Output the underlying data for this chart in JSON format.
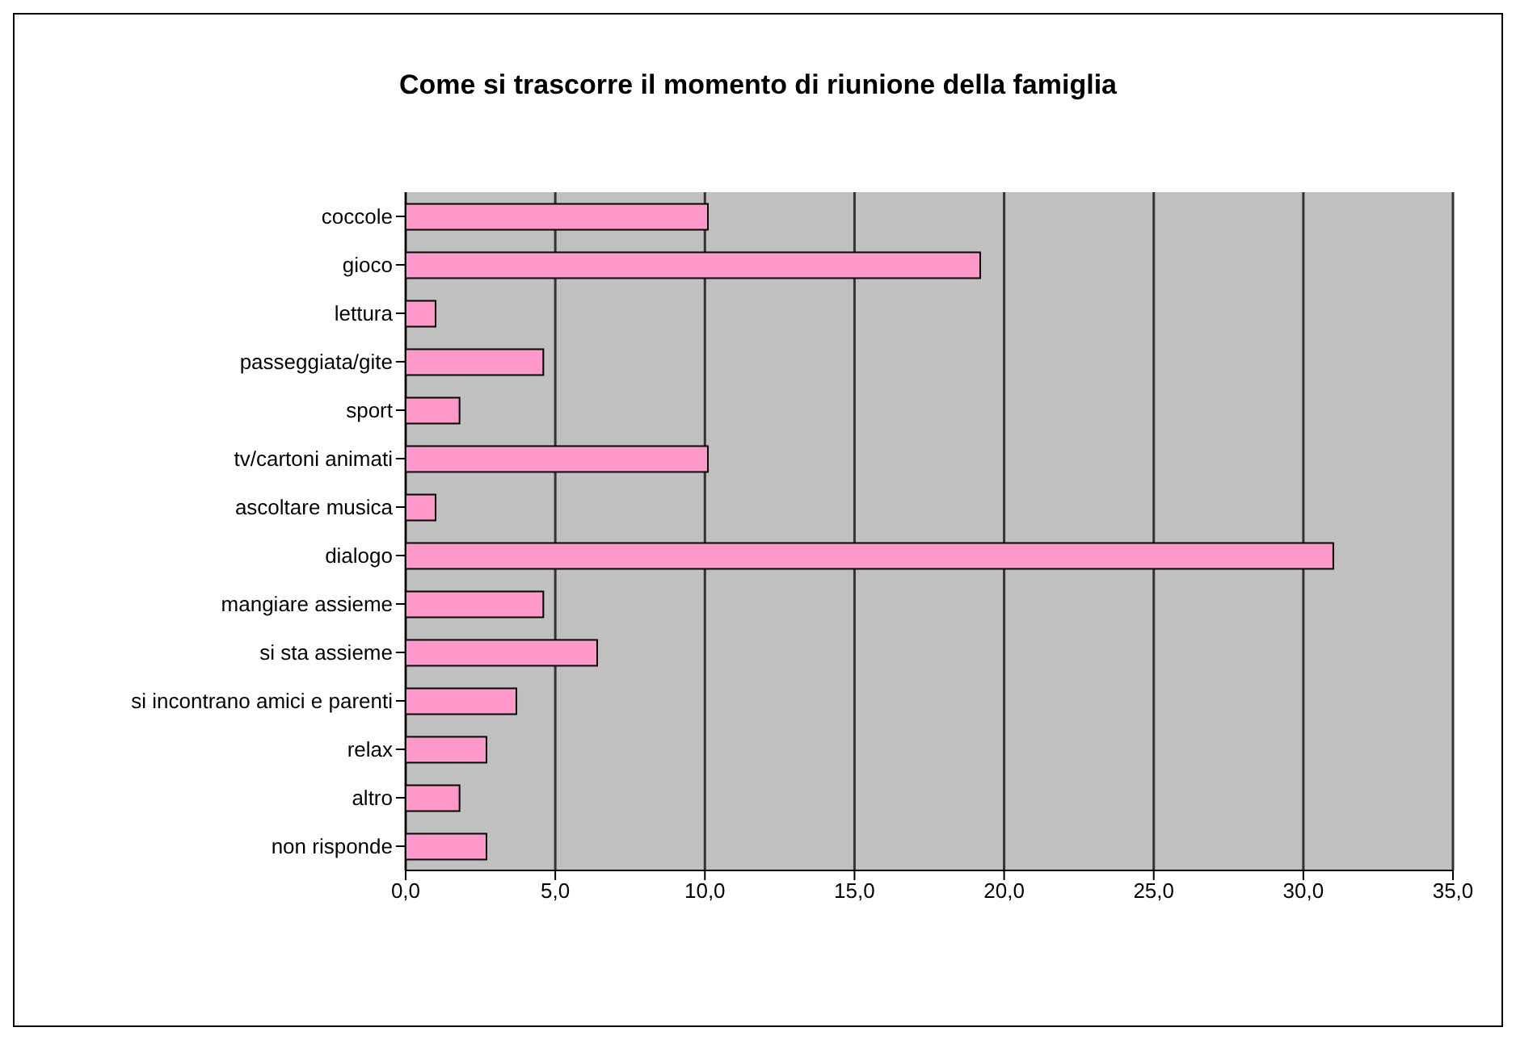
{
  "chart_data": {
    "type": "bar",
    "orientation": "horizontal",
    "title": "Come si trascorre il momento di riunione della famiglia",
    "categories": [
      "coccole",
      "gioco",
      "lettura",
      "passeggiata/gite",
      "sport",
      "tv/cartoni animati",
      "ascoltare musica",
      "dialogo",
      "mangiare assieme",
      "si sta assieme",
      "si incontrano amici e parenti",
      "relax",
      "altro",
      "non risponde"
    ],
    "values": [
      10.1,
      19.2,
      1.0,
      4.6,
      1.8,
      10.1,
      1.0,
      31.0,
      4.6,
      6.4,
      3.7,
      2.7,
      1.8,
      2.7
    ],
    "color": "#ff99cc",
    "xlim": [
      0,
      35
    ],
    "xticks": [
      {
        "value": 0,
        "label": "0,0"
      },
      {
        "value": 5,
        "label": "5,0"
      },
      {
        "value": 10,
        "label": "10,0"
      },
      {
        "value": 15,
        "label": "15,0"
      },
      {
        "value": 20,
        "label": "20,0"
      },
      {
        "value": 25,
        "label": "25,0"
      },
      {
        "value": 30,
        "label": "30,0"
      },
      {
        "value": 35,
        "label": "35,0"
      }
    ],
    "grid": "x",
    "legend": false
  }
}
